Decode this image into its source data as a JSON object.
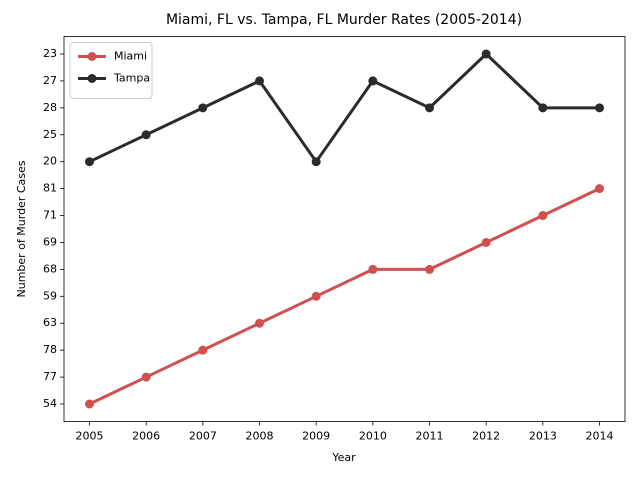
{
  "chart_data": {
    "type": "line",
    "title": "Miami, FL vs. Tampa, FL Murder Rates (2005-2014)",
    "xlabel": "Year",
    "ylabel": "Number of Murder Cases",
    "categories": [
      "2005",
      "2006",
      "2007",
      "2008",
      "2009",
      "2010",
      "2011",
      "2012",
      "2013",
      "2014"
    ],
    "ycategories": [
      54,
      77,
      78,
      63,
      59,
      68,
      69,
      71,
      81,
      20,
      25,
      28,
      27,
      23
    ],
    "series": [
      {
        "name": "Miami",
        "color": "#d0504f",
        "values": [
          54,
          77,
          78,
          63,
          59,
          68,
          68,
          69,
          71,
          81
        ]
      },
      {
        "name": "Tampa",
        "color": "#2b2b2b",
        "values": [
          20,
          25,
          28,
          27,
          20,
          27,
          28,
          23,
          28,
          28
        ]
      }
    ],
    "legend": "upper left"
  }
}
